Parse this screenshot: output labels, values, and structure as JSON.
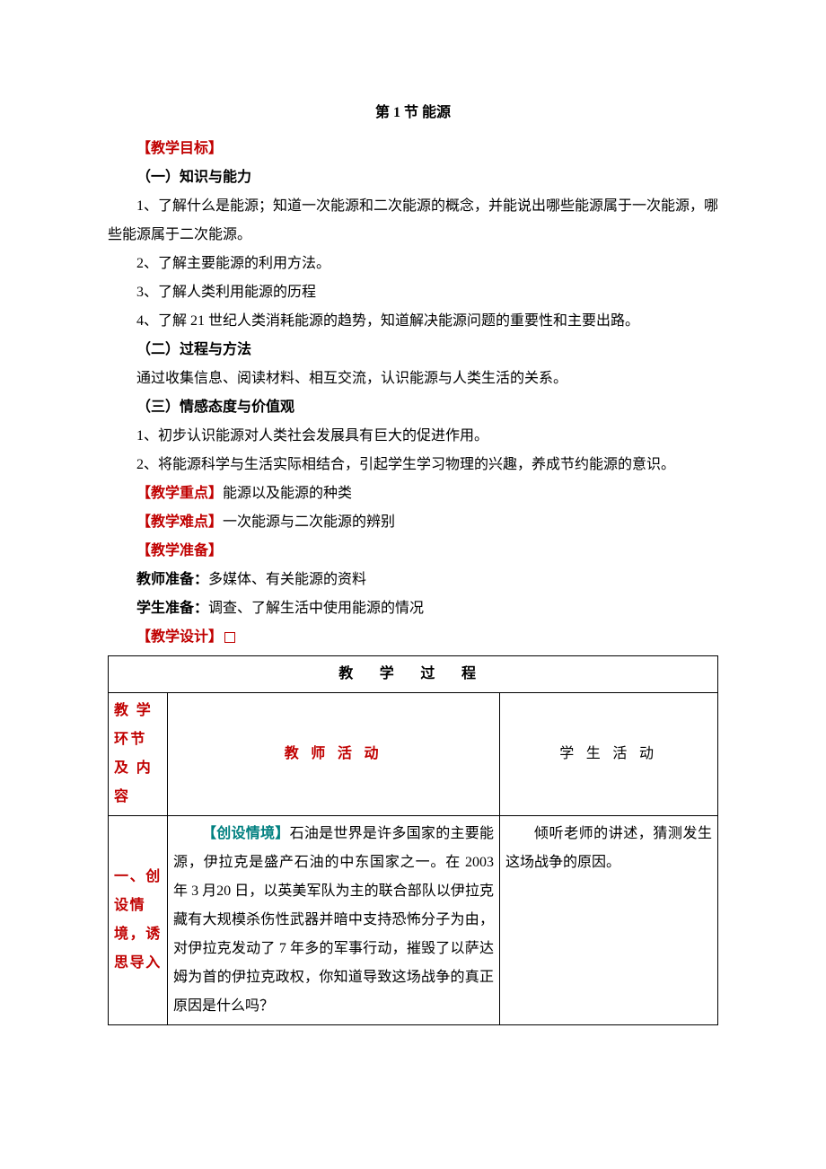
{
  "title": "第 1 节  能源",
  "sections": {
    "goal_header": "【教学目标】",
    "s1_header": "（一）知识与能力",
    "s1_p1": "1、了解什么是能源；知道一次能源和二次能源的概念，并能说出哪些能源属于一次能源，哪些能源属于二次能源。",
    "s1_p2": "2、了解主要能源的利用方法。",
    "s1_p3": "3、了解人类利用能源的历程",
    "s1_p4": "4、了解 21 世纪人类消耗能源的趋势，知道解决能源问题的重要性和主要出路。",
    "s2_header": "（二）过程与方法",
    "s2_p1": "通过收集信息、阅读材料、相互交流，认识能源与人类生活的关系。",
    "s3_header": "（三）情感态度与价值观",
    "s3_p1": "1、初步认识能源对人类社会发展具有巨大的促进作用。",
    "s3_p2": "2、将能源科学与生活实际相结合，引起学生学习物理的兴趣，养成节约能源的意识。",
    "focus_label": "【教学重点】",
    "focus_text": "能源以及能源的种类",
    "difficulty_label": "【教学难点】",
    "difficulty_text": "一次能源与二次能源的辨别",
    "prep_header": "【教学准备】",
    "teacher_prep_label": "教师准备：",
    "teacher_prep_text": "多媒体、有关能源的资料",
    "student_prep_label": "学生准备：",
    "student_prep_text": "调查、了解生活中使用能源的情况",
    "design_header": "【教学设计】"
  },
  "table": {
    "main_header": "教 学 过 程",
    "col1_header": "教 学 环节 及 内容",
    "col2_header": "教 师 活 动",
    "col3_header": "学 生 活 动",
    "row1": {
      "col1": "一、创设情境，诱思导入",
      "col2_label": "【创设情境】",
      "col2_text": "石油是世界是许多国家的主要能源，伊拉克是盛产石油的中东国家之一。在 2003 年 3 月20 日，以英美军队为主的联合部队以伊拉克藏有大规模杀伤性武器并暗中支持恐怖分子为由，对伊拉克发动了 7 年多的军事行动，摧毁了以萨达姆为首的伊拉克政权，你知道导致这场战争的真正原因是什么吗？",
      "col3_text": "倾听老师的讲述，猜测发生这场战争的原因。"
    }
  },
  "colors": {
    "red": "#c00000",
    "teal": "#008080",
    "black": "#000000",
    "bg": "#ffffff"
  }
}
